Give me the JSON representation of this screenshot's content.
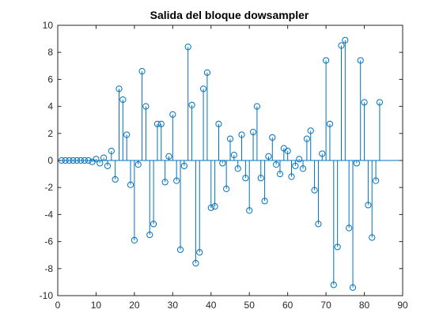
{
  "chart_data": {
    "type": "stem",
    "title": "Salida del bloque dowsampler",
    "xlabel": "",
    "ylabel": "",
    "xlim": [
      0,
      90
    ],
    "ylim": [
      -10,
      10
    ],
    "xticks": [
      0,
      10,
      20,
      30,
      40,
      50,
      60,
      70,
      80,
      90
    ],
    "yticks": [
      -10,
      -8,
      -6,
      -4,
      -2,
      0,
      2,
      4,
      6,
      8,
      10
    ],
    "grid": false,
    "color": "#0072BD",
    "x": [
      1,
      2,
      3,
      4,
      5,
      6,
      7,
      8,
      9,
      10,
      11,
      12,
      13,
      14,
      15,
      16,
      17,
      18,
      19,
      20,
      21,
      22,
      23,
      24,
      25,
      26,
      27,
      28,
      29,
      30,
      31,
      32,
      33,
      34,
      35,
      36,
      37,
      38,
      39,
      40,
      41,
      42,
      43,
      44,
      45,
      46,
      47,
      48,
      49,
      50,
      51,
      52,
      53,
      54,
      55,
      56,
      57,
      58,
      59,
      60,
      61,
      62,
      63,
      64,
      65,
      66,
      67,
      68,
      69,
      70,
      71,
      72,
      73,
      74,
      75,
      76,
      77,
      78,
      79,
      80,
      81,
      82,
      83,
      84
    ],
    "values": [
      0,
      0,
      0,
      0,
      0,
      0,
      0,
      0,
      -0.1,
      0.1,
      -0.2,
      0.2,
      -0.4,
      0.7,
      -1.4,
      5.3,
      4.5,
      1.9,
      -1.8,
      -5.9,
      -0.3,
      6.6,
      4.0,
      -5.5,
      -4.7,
      2.7,
      2.7,
      -1.6,
      0.3,
      3.4,
      -1.5,
      -6.6,
      -0.4,
      8.4,
      4.1,
      -7.6,
      -6.8,
      5.3,
      6.5,
      -3.5,
      -3.4,
      2.7,
      -0.2,
      -2.1,
      1.6,
      0.4,
      -0.6,
      1.9,
      -1.3,
      -3.7,
      2.1,
      4.0,
      -1.3,
      -3.0,
      0.3,
      1.7,
      -0.3,
      -1.0,
      0.9,
      0.7,
      -1.2,
      -0.4,
      0.1,
      -0.6,
      1.6,
      2.2,
      -2.2,
      -4.7,
      0.5,
      7.4,
      2.7,
      -9.2,
      -6.4,
      8.5,
      8.9,
      -5.0,
      -9.4,
      -0.2,
      7.4,
      4.3,
      -3.3,
      -5.7,
      -1.5,
      4.3
    ]
  }
}
